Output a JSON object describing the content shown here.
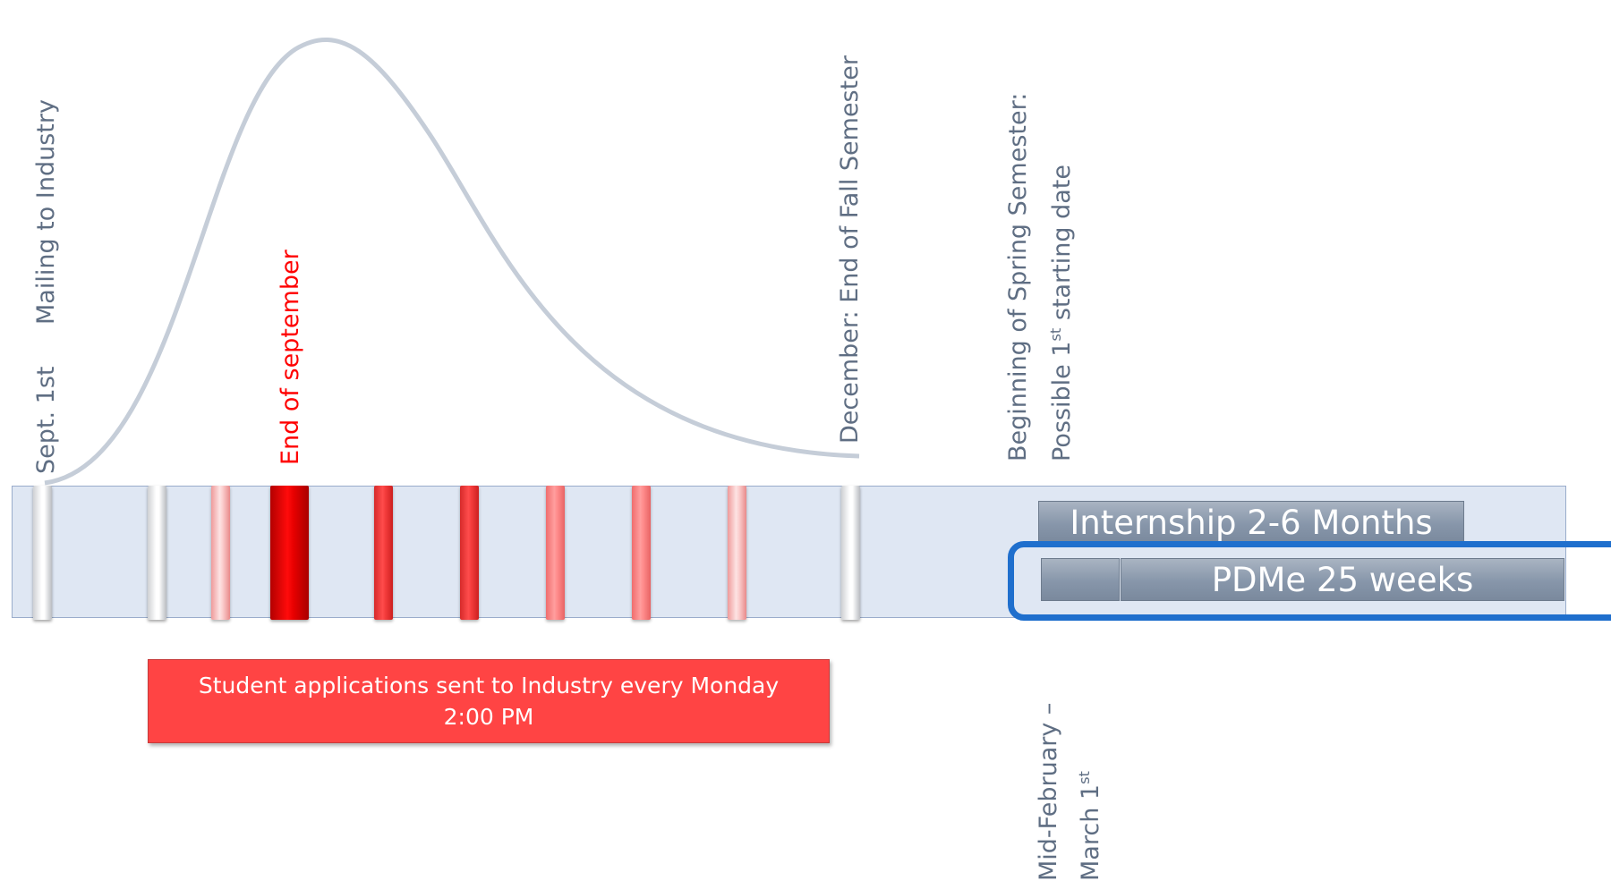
{
  "labels": {
    "sept_1st": "Sept. 1st",
    "mailing": "Mailing to Industry",
    "end_of_september": "End of september",
    "december": "December: End of Fall  Semester",
    "spring_line1": "Beginning of Spring Semester:",
    "spring_line2_pre": "Possible 1",
    "spring_line2_sup": "st",
    "spring_line2_post": " starting date",
    "midfeb_line1": "Mid-February –",
    "midfeb_line2_pre": "March 1",
    "midfeb_line2_sup": "st"
  },
  "bars": {
    "internship": "Internship 2-6 Months",
    "pdme": "PDMe 25 weeks"
  },
  "applications": {
    "line1": "Student applications sent to Industry every Monday",
    "line2": "2:00 PM"
  },
  "colors": {
    "label_gray": "#5f6e83",
    "highlight_red": "#ff0000",
    "band_fill": "#dfe7f3",
    "frame_blue": "#1f6fcd",
    "applications_red": "#ff4444"
  },
  "markers": [
    "white",
    "white",
    "pink",
    "dark-red",
    "red",
    "red",
    "salmon",
    "salmon",
    "pink",
    "white"
  ]
}
